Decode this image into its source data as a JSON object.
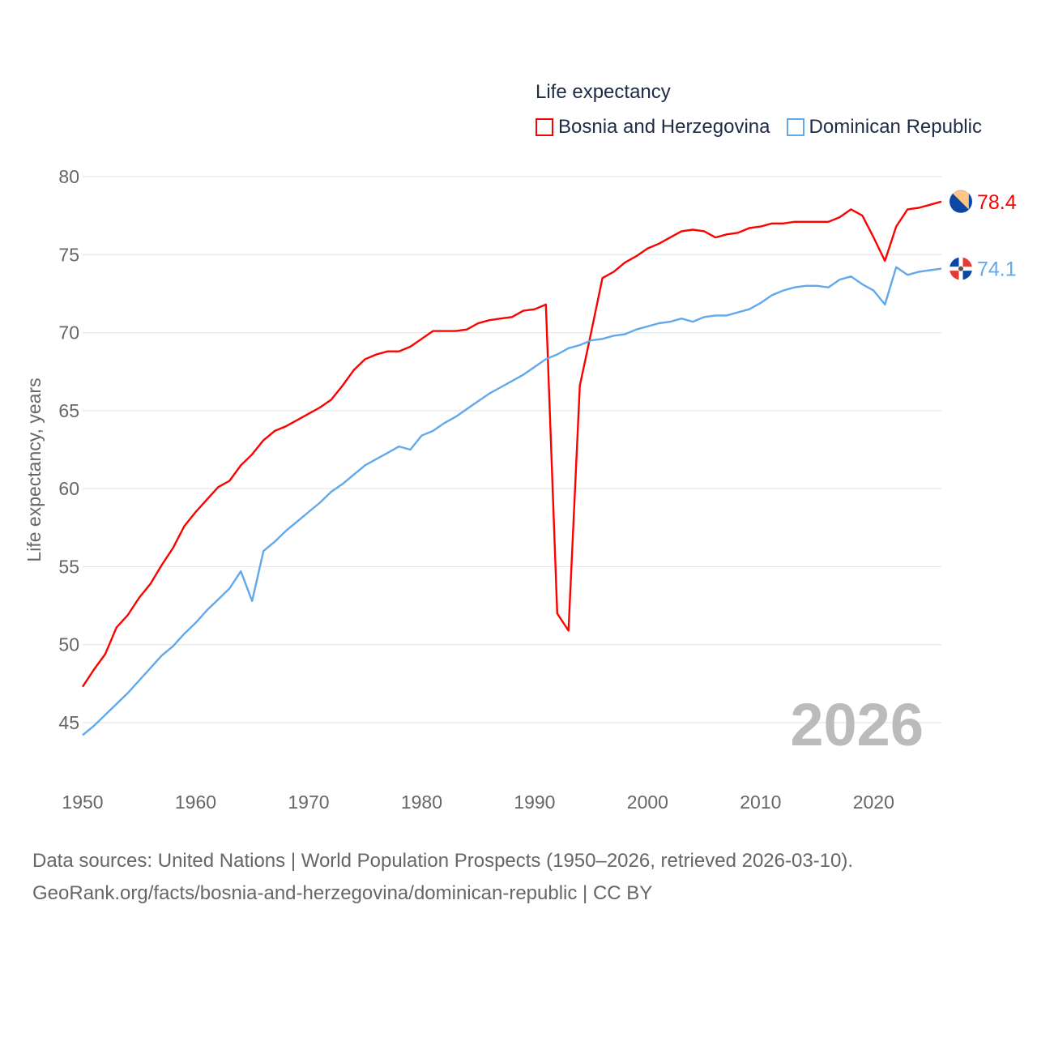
{
  "chart_data": {
    "type": "line",
    "title": "Life expectancy",
    "xlabel": "",
    "ylabel": "Life expectancy, years",
    "xlim": [
      1950,
      2026
    ],
    "ylim": [
      45,
      80
    ],
    "x_ticks": [
      "1950",
      "1960",
      "1970",
      "1980",
      "1990",
      "2000",
      "2010",
      "2020"
    ],
    "y_ticks": [
      "45",
      "50",
      "55",
      "60",
      "65",
      "70",
      "75",
      "80"
    ],
    "grid": true,
    "legend_placement": "top-right",
    "year_label": "2026",
    "x": [
      1950,
      1951,
      1952,
      1953,
      1954,
      1955,
      1956,
      1957,
      1958,
      1959,
      1960,
      1961,
      1962,
      1963,
      1964,
      1965,
      1966,
      1967,
      1968,
      1969,
      1970,
      1971,
      1972,
      1973,
      1974,
      1975,
      1976,
      1977,
      1978,
      1979,
      1980,
      1981,
      1982,
      1983,
      1984,
      1985,
      1986,
      1987,
      1988,
      1989,
      1990,
      1991,
      1992,
      1993,
      1994,
      1995,
      1996,
      1997,
      1998,
      1999,
      2000,
      2001,
      2002,
      2003,
      2004,
      2005,
      2006,
      2007,
      2008,
      2009,
      2010,
      2011,
      2012,
      2013,
      2014,
      2015,
      2016,
      2017,
      2018,
      2019,
      2020,
      2021,
      2022,
      2023,
      2024,
      2025,
      2026
    ],
    "series": [
      {
        "name": "Bosnia and Herzegovina",
        "color": "#ff0000",
        "end_label": "78.4",
        "values": [
          47.3,
          48.4,
          49.4,
          51.1,
          51.9,
          53.0,
          53.9,
          55.1,
          56.2,
          57.6,
          58.5,
          59.3,
          60.1,
          60.5,
          61.5,
          62.2,
          63.1,
          63.7,
          64.0,
          64.4,
          64.8,
          65.2,
          65.7,
          66.6,
          67.6,
          68.3,
          68.6,
          68.8,
          68.8,
          69.1,
          69.6,
          70.1,
          70.1,
          70.1,
          70.2,
          70.6,
          70.8,
          70.9,
          71.0,
          71.4,
          71.5,
          71.8,
          52.0,
          50.9,
          66.6,
          70.0,
          73.5,
          73.9,
          74.5,
          74.9,
          75.4,
          75.7,
          76.1,
          76.5,
          76.6,
          76.5,
          76.1,
          76.3,
          76.4,
          76.7,
          76.8,
          77.0,
          77.0,
          77.1,
          77.1,
          77.1,
          77.1,
          77.4,
          77.9,
          77.5,
          76.1,
          74.6,
          76.8,
          77.9,
          78.0,
          78.2,
          78.4
        ]
      },
      {
        "name": "Dominican Republic",
        "color": "#62a8ea",
        "end_label": "74.1",
        "values": [
          44.2,
          44.8,
          45.5,
          46.2,
          46.9,
          47.7,
          48.5,
          49.3,
          49.9,
          50.7,
          51.4,
          52.2,
          52.9,
          53.6,
          54.7,
          52.8,
          56.0,
          56.6,
          57.3,
          57.9,
          58.5,
          59.1,
          59.8,
          60.3,
          60.9,
          61.5,
          61.9,
          62.3,
          62.7,
          62.5,
          63.4,
          63.7,
          64.2,
          64.6,
          65.1,
          65.6,
          66.1,
          66.5,
          66.9,
          67.3,
          67.8,
          68.3,
          68.6,
          69.0,
          69.2,
          69.5,
          69.6,
          69.8,
          69.9,
          70.2,
          70.4,
          70.6,
          70.7,
          70.9,
          70.7,
          71.0,
          71.1,
          71.1,
          71.3,
          71.5,
          71.9,
          72.4,
          72.7,
          72.9,
          73.0,
          73.0,
          72.9,
          73.4,
          73.6,
          73.1,
          72.7,
          71.8,
          74.2,
          73.7,
          73.9,
          74.0,
          74.1
        ]
      }
    ]
  },
  "source": {
    "line1": "Data sources: United Nations | World Population Prospects (1950–2026, retrieved 2026-03-10).",
    "line2": "GeoRank.org/facts/bosnia-and-herzegovina/dominican-republic | CC BY"
  }
}
